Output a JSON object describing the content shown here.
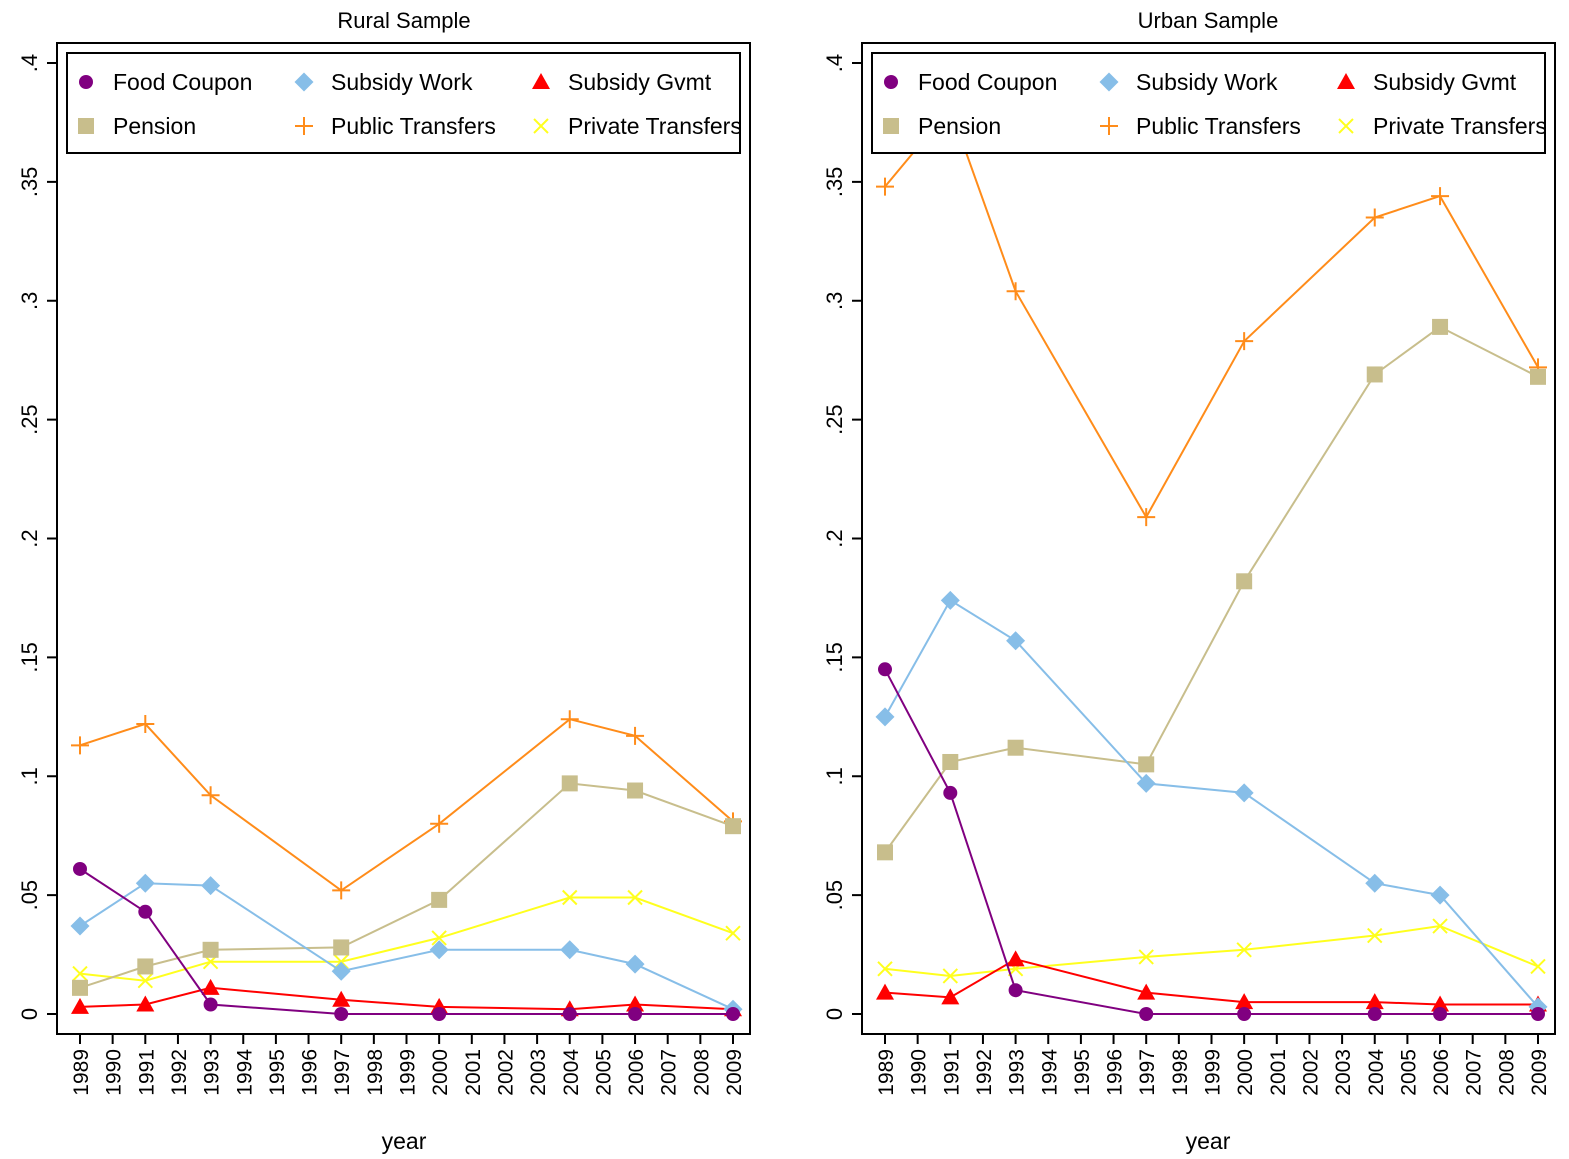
{
  "colors": {
    "food_coupon": "#800080",
    "subsidy_work": "#87BEE8",
    "subsidy_gvmt": "#FF0000",
    "pension": "#C8BE8C",
    "public_transfers": "#FF8C1A",
    "private_transfers": "#FFFF1E"
  },
  "chart_data": [
    {
      "type": "line",
      "title": "Rural Sample",
      "xlabel": "year",
      "ylabel": "",
      "ylim": [
        0,
        0.4
      ],
      "yticks": [
        0,
        0.05,
        0.1,
        0.15,
        0.2,
        0.25,
        0.3,
        0.35,
        0.4
      ],
      "ytick_labels": [
        "0",
        ".05",
        ".1",
        ".15",
        ".2",
        ".25",
        ".3",
        ".35",
        ".4"
      ],
      "xticks": [
        "1989",
        "1990",
        "1991",
        "1992",
        "1993",
        "1994",
        "1995",
        "1996",
        "1997",
        "1998",
        "1999",
        "2000",
        "2001",
        "2002",
        "2003",
        "2004",
        "2005",
        "2006",
        "2007",
        "2008",
        "2009"
      ],
      "grid": false,
      "legend_position": "top",
      "x": [
        1989,
        1991,
        1993,
        1997,
        2000,
        2004,
        2006,
        2009
      ],
      "series": [
        {
          "name": "Food Coupon",
          "marker": "circle",
          "values": [
            0.061,
            0.043,
            0.004,
            0.0,
            0.0,
            0.0,
            0.0,
            0.0
          ]
        },
        {
          "name": "Subsidy Work",
          "marker": "diamond",
          "values": [
            0.037,
            0.055,
            0.054,
            0.018,
            0.027,
            0.027,
            0.021,
            0.002
          ]
        },
        {
          "name": "Subsidy Gvmt",
          "marker": "triangle",
          "values": [
            0.003,
            0.004,
            0.011,
            0.006,
            0.003,
            0.002,
            0.004,
            0.002
          ]
        },
        {
          "name": "Pension",
          "marker": "square",
          "values": [
            0.011,
            0.02,
            0.027,
            0.028,
            0.048,
            0.097,
            0.094,
            0.079
          ]
        },
        {
          "name": "Public Transfers",
          "marker": "plus",
          "values": [
            0.113,
            0.122,
            0.092,
            0.052,
            0.08,
            0.124,
            0.117,
            0.081
          ]
        },
        {
          "name": "Private Transfers",
          "marker": "x",
          "values": [
            0.017,
            0.014,
            0.022,
            0.022,
            0.032,
            0.049,
            0.049,
            0.034
          ]
        }
      ]
    },
    {
      "type": "line",
      "title": "Urban Sample",
      "xlabel": "year",
      "ylabel": "",
      "ylim": [
        0,
        0.4
      ],
      "yticks": [
        0,
        0.05,
        0.1,
        0.15,
        0.2,
        0.25,
        0.3,
        0.35,
        0.4
      ],
      "ytick_labels": [
        "0",
        ".05",
        ".1",
        ".15",
        ".2",
        ".25",
        ".3",
        ".35",
        ".4"
      ],
      "xticks": [
        "1989",
        "1990",
        "1991",
        "1992",
        "1993",
        "1994",
        "1995",
        "1996",
        "1997",
        "1998",
        "1999",
        "2000",
        "2001",
        "2002",
        "2003",
        "2004",
        "2005",
        "2006",
        "2007",
        "2008",
        "2009"
      ],
      "grid": false,
      "legend_position": "top",
      "x": [
        1989,
        1991,
        1993,
        1997,
        2000,
        2004,
        2006,
        2009
      ],
      "series": [
        {
          "name": "Food Coupon",
          "marker": "circle",
          "values": [
            0.145,
            0.093,
            0.01,
            0.0,
            0.0,
            0.0,
            0.0,
            0.0
          ]
        },
        {
          "name": "Subsidy Work",
          "marker": "diamond",
          "values": [
            0.125,
            0.174,
            0.157,
            0.097,
            0.093,
            0.055,
            0.05,
            0.003
          ]
        },
        {
          "name": "Subsidy Gvmt",
          "marker": "triangle",
          "values": [
            0.009,
            0.007,
            0.023,
            0.009,
            0.005,
            0.005,
            0.004,
            0.004
          ]
        },
        {
          "name": "Pension",
          "marker": "square",
          "values": [
            0.068,
            0.106,
            0.112,
            0.105,
            0.182,
            0.269,
            0.289,
            0.268
          ]
        },
        {
          "name": "Public Transfers",
          "marker": "plus",
          "values": [
            0.348,
            0.381,
            0.304,
            0.209,
            0.283,
            0.335,
            0.344,
            0.272
          ]
        },
        {
          "name": "Private Transfers",
          "marker": "x",
          "values": [
            0.019,
            0.016,
            0.019,
            0.024,
            0.027,
            0.033,
            0.037,
            0.02
          ]
        }
      ]
    }
  ]
}
